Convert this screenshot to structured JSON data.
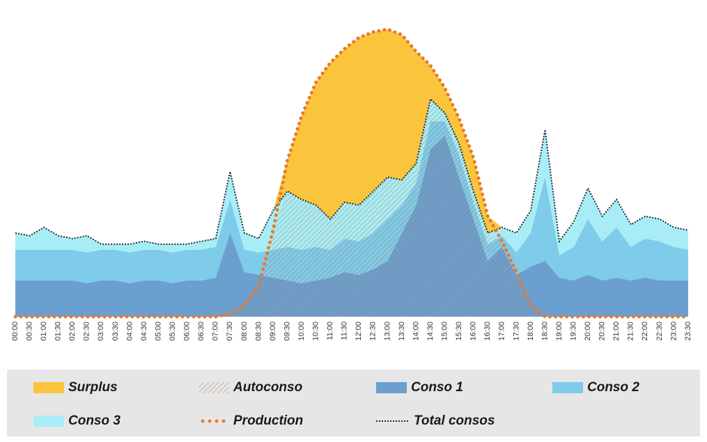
{
  "chart_data": {
    "type": "stacked_area",
    "categories": [
      "00:00",
      "00:30",
      "01:00",
      "01:30",
      "02:00",
      "02:30",
      "03:00",
      "03:30",
      "04:00",
      "04:30",
      "05:00",
      "05:30",
      "06:00",
      "06:30",
      "07:00",
      "07:30",
      "08:00",
      "08:30",
      "09:00",
      "09:30",
      "10:00",
      "10:30",
      "11:00",
      "11:30",
      "12:00",
      "12:30",
      "13:00",
      "13:30",
      "14:00",
      "14:30",
      "15:00",
      "15:30",
      "16:00",
      "16:30",
      "17:00",
      "17:30",
      "18:00",
      "18:30",
      "19:00",
      "19:30",
      "20:00",
      "20:30",
      "21:00",
      "21:30",
      "22:00",
      "22:30",
      "23:00",
      "23:30"
    ],
    "series": [
      {
        "name": "Surplus",
        "color": "#fbc43d",
        "values": [
          0,
          0,
          0,
          0,
          0,
          0,
          0,
          0,
          0,
          0,
          0,
          0,
          0,
          0,
          0,
          0,
          0,
          0,
          0,
          11,
          30,
          44,
          56,
          55,
          60,
          57,
          53,
          52,
          40,
          12,
          9,
          9,
          12,
          6,
          0,
          0,
          0,
          0,
          0,
          0,
          0,
          0,
          0,
          0,
          0,
          0,
          0,
          0
        ]
      },
      {
        "name": "Autoconso",
        "color": "#a8754e",
        "values": [
          0,
          0,
          0,
          0,
          0,
          0,
          0,
          0,
          0,
          0,
          0,
          0,
          0,
          0,
          0,
          1,
          4,
          11,
          31,
          45,
          42,
          40,
          35,
          41,
          40,
          45,
          50,
          49,
          55,
          78,
          73,
          62,
          45,
          30,
          27,
          16,
          4,
          0,
          0,
          0,
          0,
          0,
          0,
          0,
          0,
          0,
          0,
          0
        ]
      },
      {
        "name": "Conso 1",
        "color": "#6b9fcf",
        "values": [
          13,
          13,
          13,
          13,
          13,
          12,
          13,
          13,
          12,
          13,
          13,
          12,
          13,
          13,
          14,
          30,
          16,
          15,
          14,
          13,
          12,
          13,
          14,
          16,
          15,
          17,
          20,
          30,
          40,
          60,
          65,
          50,
          35,
          20,
          25,
          15,
          18,
          20,
          14,
          13,
          15,
          13,
          14,
          13,
          14,
          13,
          13,
          13
        ]
      },
      {
        "name": "Conso 2",
        "color": "#7ecbea",
        "values": [
          11,
          11,
          11,
          11,
          11,
          11,
          11,
          11,
          11,
          11,
          11,
          11,
          11,
          11,
          11,
          12,
          8,
          8,
          10,
          12,
          12,
          12,
          10,
          12,
          12,
          13,
          15,
          10,
          8,
          10,
          5,
          8,
          6,
          6,
          4,
          8,
          12,
          30,
          8,
          12,
          20,
          14,
          18,
          12,
          14,
          14,
          12,
          11
        ]
      },
      {
        "name": "Conso 3",
        "color": "#a8edf6",
        "values": [
          6,
          5,
          8,
          5,
          4,
          6,
          2,
          2,
          3,
          3,
          2,
          3,
          2,
          3,
          3,
          10,
          6,
          5,
          14,
          20,
          18,
          15,
          11,
          13,
          13,
          15,
          15,
          9,
          7,
          8,
          3,
          4,
          4,
          4,
          3,
          7,
          8,
          17,
          5,
          9,
          11,
          9,
          10,
          8,
          8,
          8,
          7,
          7
        ]
      },
      {
        "name": "Production",
        "color": "#e8792c",
        "values": [
          0,
          0,
          0,
          0,
          0,
          0,
          0,
          0,
          0,
          0,
          0,
          0,
          0,
          0,
          0,
          1,
          4,
          11,
          31,
          56,
          72,
          84,
          91,
          96,
          100,
          102,
          103,
          101,
          95,
          90,
          82,
          71,
          57,
          36,
          27,
          16,
          4,
          0,
          0,
          0,
          0,
          0,
          0,
          0,
          0,
          0,
          0,
          0
        ]
      },
      {
        "name": "Total consos",
        "color": "#1c2b38",
        "values": [
          30,
          29,
          32,
          29,
          28,
          29,
          26,
          26,
          26,
          27,
          26,
          26,
          26,
          27,
          28,
          52,
          30,
          28,
          38,
          45,
          42,
          40,
          35,
          41,
          40,
          45,
          50,
          49,
          55,
          78,
          73,
          62,
          45,
          30,
          32,
          30,
          38,
          67,
          27,
          34,
          46,
          36,
          42,
          33,
          36,
          35,
          32,
          31
        ]
      }
    ]
  }
}
